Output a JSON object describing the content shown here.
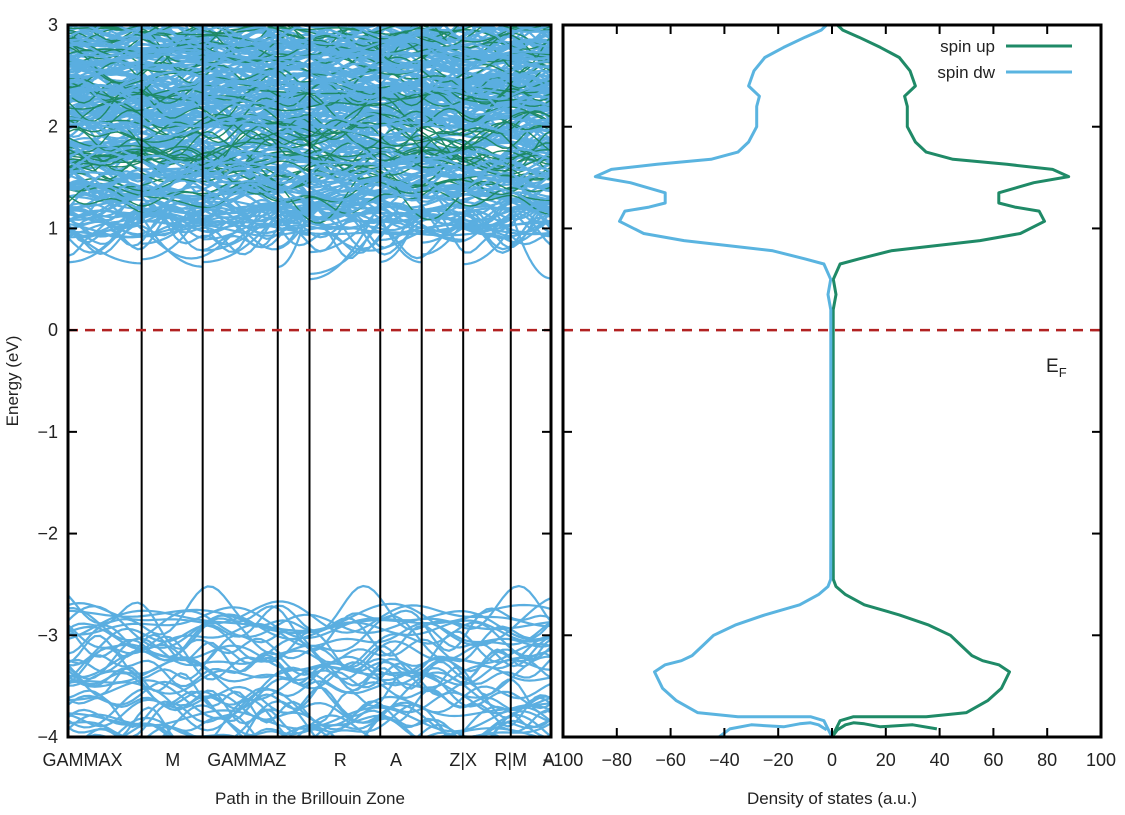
{
  "chart_data": [
    {
      "type": "line",
      "name": "band-structure",
      "xlabel": "Path in the Brillouin Zone",
      "ylabel": "Energy (eV)",
      "ylim": [
        -4,
        3
      ],
      "y_ticks": [
        3,
        2,
        1,
        0,
        -1,
        -2,
        -3,
        -4
      ],
      "y_tick_labels": [
        "3",
        "2",
        "1",
        "0",
        "−1",
        "−2",
        "−3",
        "−4"
      ],
      "kpath_labels": [
        "GAMMA",
        "X",
        "M",
        "GAMMA",
        "Z",
        "R",
        "A",
        "Z|X",
        "R|M",
        "A"
      ],
      "kpath_tick_text": [
        "GAMMAX",
        "M",
        "GAMMAZ",
        "R",
        "A",
        "Z|X",
        "R|M",
        "A"
      ],
      "kpath_positions": [
        0,
        0.1525,
        0.2788,
        0.4343,
        0.5,
        0.6465,
        0.7323,
        0.8182,
        0.9167,
        1
      ],
      "fermi_level": 0,
      "band_color": "#5aaee0",
      "band_color_up": "#1f8a67",
      "conduction_band_min": 0.4,
      "valence_band_max": -2.65,
      "grid": false
    },
    {
      "type": "line",
      "name": "density-of-states",
      "xlabel": "Density of states (a.u.)",
      "xlim": [
        -100,
        100
      ],
      "ylim": [
        -4,
        3
      ],
      "x_ticks": [
        -100,
        -80,
        -60,
        -40,
        -20,
        0,
        20,
        40,
        60,
        80,
        100
      ],
      "x_tick_labels": [
        "−100",
        "−80",
        "−60",
        "−40",
        "−20",
        "0",
        "20",
        "40",
        "60",
        "80",
        "100"
      ],
      "legend_position": "top-right",
      "ef_label": "E",
      "ef_subscript": "F",
      "fermi_level": 0,
      "grid": false,
      "series": [
        {
          "name": "spin up",
          "color": "#1f8a67",
          "points": [
            [
              0.0,
              -4.0
            ],
            [
              2.0,
              -3.93
            ],
            [
              5.0,
              -3.88
            ],
            [
              8.0,
              -3.86
            ],
            [
              12.0,
              -3.87
            ],
            [
              18.0,
              -3.9
            ],
            [
              30.0,
              -3.88
            ],
            [
              39.0,
              -3.92
            ],
            [
              42.0,
              -4.0
            ],
            [
              0,
              -4.0
            ],
            [
              3.0,
              -3.84
            ],
            [
              8.0,
              -3.8
            ],
            [
              20.0,
              -3.8
            ],
            [
              35.0,
              -3.8
            ],
            [
              50.0,
              -3.76
            ],
            [
              58.0,
              -3.64
            ],
            [
              63.0,
              -3.52
            ],
            [
              66.0,
              -3.36
            ],
            [
              62.0,
              -3.29
            ],
            [
              56.0,
              -3.25
            ],
            [
              52.0,
              -3.2
            ],
            [
              48.0,
              -3.1
            ],
            [
              44.0,
              -3.0
            ],
            [
              36.0,
              -2.9
            ],
            [
              25.0,
              -2.8
            ],
            [
              12.0,
              -2.7
            ],
            [
              5.0,
              -2.6
            ],
            [
              1.5,
              -2.52
            ],
            [
              0.5,
              -2.45
            ],
            [
              0.45,
              -2.0
            ],
            [
              0.45,
              -1.0
            ],
            [
              0.45,
              0.0
            ],
            [
              0.45,
              0.2
            ],
            [
              1.5,
              0.35
            ],
            [
              0.5,
              0.5
            ],
            [
              3.0,
              0.65
            ],
            [
              10.0,
              0.7
            ],
            [
              22.0,
              0.78
            ],
            [
              35.0,
              0.82
            ],
            [
              55.0,
              0.88
            ],
            [
              70.0,
              0.95
            ],
            [
              79.0,
              1.07
            ],
            [
              77.0,
              1.17
            ],
            [
              68.0,
              1.21
            ],
            [
              62.0,
              1.25
            ],
            [
              62.0,
              1.35
            ],
            [
              75.0,
              1.45
            ],
            [
              88.0,
              1.51
            ],
            [
              82.0,
              1.58
            ],
            [
              65.0,
              1.63
            ],
            [
              45.0,
              1.68
            ],
            [
              35.0,
              1.75
            ],
            [
              31.0,
              1.85
            ],
            [
              28.0,
              2.0
            ],
            [
              28.0,
              2.2
            ],
            [
              27.0,
              2.3
            ],
            [
              31.0,
              2.4
            ],
            [
              29.0,
              2.55
            ],
            [
              25.0,
              2.68
            ],
            [
              18.0,
              2.78
            ],
            [
              10.0,
              2.88
            ],
            [
              4.0,
              2.95
            ],
            [
              2.0,
              3.0
            ]
          ]
        },
        {
          "name": "spin dw",
          "color": "#5ab4e0",
          "points": [
            [
              -42.0,
              -4.0
            ],
            [
              -38.0,
              -3.92
            ],
            [
              -30.0,
              -3.88
            ],
            [
              -18.0,
              -3.9
            ],
            [
              -12.0,
              -3.87
            ],
            [
              -8.0,
              -3.86
            ],
            [
              -5.0,
              -3.88
            ],
            [
              -2.0,
              -3.93
            ],
            [
              0.0,
              -4.0
            ],
            [
              0,
              -4.0
            ],
            [
              -3.0,
              -3.84
            ],
            [
              -8.0,
              -3.8
            ],
            [
              -20.0,
              -3.8
            ],
            [
              -35.0,
              -3.8
            ],
            [
              -50.0,
              -3.76
            ],
            [
              -58.0,
              -3.64
            ],
            [
              -63.0,
              -3.52
            ],
            [
              -66.0,
              -3.36
            ],
            [
              -62.0,
              -3.29
            ],
            [
              -56.0,
              -3.25
            ],
            [
              -52.0,
              -3.2
            ],
            [
              -48.0,
              -3.1
            ],
            [
              -44.0,
              -3.0
            ],
            [
              -36.0,
              -2.9
            ],
            [
              -25.0,
              -2.8
            ],
            [
              -12.0,
              -2.7
            ],
            [
              -5.0,
              -2.6
            ],
            [
              -1.5,
              -2.52
            ],
            [
              -0.5,
              -2.45
            ],
            [
              -0.45,
              -2.0
            ],
            [
              -0.45,
              -1.0
            ],
            [
              -0.45,
              0.0
            ],
            [
              -0.45,
              0.2
            ],
            [
              -1.5,
              0.35
            ],
            [
              -0.5,
              0.5
            ],
            [
              -3.0,
              0.65
            ],
            [
              -10.0,
              0.7
            ],
            [
              -22.0,
              0.78
            ],
            [
              -35.0,
              0.82
            ],
            [
              -55.0,
              0.88
            ],
            [
              -70.0,
              0.95
            ],
            [
              -79.0,
              1.07
            ],
            [
              -77.0,
              1.17
            ],
            [
              -68.0,
              1.21
            ],
            [
              -62.0,
              1.25
            ],
            [
              -62.0,
              1.35
            ],
            [
              -75.0,
              1.45
            ],
            [
              -88.0,
              1.51
            ],
            [
              -82.0,
              1.58
            ],
            [
              -65.0,
              1.63
            ],
            [
              -45.0,
              1.68
            ],
            [
              -35.0,
              1.75
            ],
            [
              -31.0,
              1.85
            ],
            [
              -28.0,
              2.0
            ],
            [
              -28.0,
              2.2
            ],
            [
              -27.0,
              2.3
            ],
            [
              -31.0,
              2.4
            ],
            [
              -29.0,
              2.55
            ],
            [
              -25.0,
              2.68
            ],
            [
              -18.0,
              2.78
            ],
            [
              -10.0,
              2.88
            ],
            [
              -4.0,
              2.95
            ],
            [
              -2.0,
              3.0
            ]
          ]
        }
      ]
    }
  ]
}
